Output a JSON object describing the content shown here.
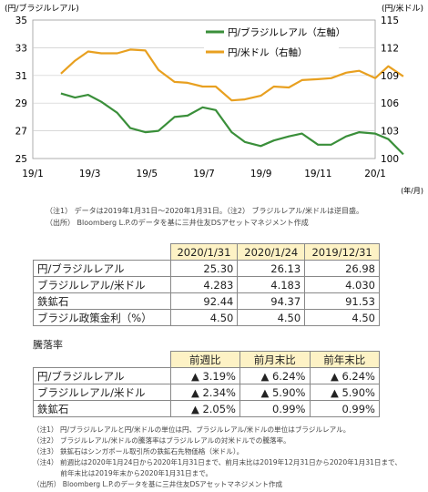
{
  "chart_data": {
    "type": "line",
    "left_axis_unit": "(円/ブラジルレアル)",
    "right_axis_unit": "(円/米ドル)",
    "x_unit": "(年/月)",
    "x_ticks": [
      "19/1",
      "19/3",
      "19/5",
      "19/7",
      "19/9",
      "19/11",
      "20/1"
    ],
    "y_left": {
      "range": [
        25,
        35
      ],
      "ticks": [
        "35",
        "33",
        "31",
        "29",
        "27",
        "25"
      ]
    },
    "y_right": {
      "range": [
        100,
        115
      ],
      "inverted": true,
      "ticks": [
        "115",
        "112",
        "109",
        "106",
        "103",
        "100"
      ]
    },
    "series": [
      {
        "name": "円/ブラジルレアル（左軸）",
        "axis": "left",
        "color": "#3a8f3a",
        "x": [
          "2019-01-31",
          "2019-02-15",
          "2019-03-01",
          "2019-03-15",
          "2019-04-01",
          "2019-04-15",
          "2019-05-01",
          "2019-05-15",
          "2019-06-01",
          "2019-06-15",
          "2019-07-01",
          "2019-07-15",
          "2019-08-01",
          "2019-08-15",
          "2019-09-01",
          "2019-09-15",
          "2019-10-01",
          "2019-10-15",
          "2019-11-01",
          "2019-11-15",
          "2019-12-01",
          "2019-12-15",
          "2020-01-01",
          "2020-01-15",
          "2020-01-31"
        ],
        "values": [
          29.7,
          29.4,
          29.6,
          29.1,
          28.3,
          27.2,
          26.9,
          27.0,
          28.0,
          28.1,
          28.7,
          28.5,
          26.9,
          26.2,
          25.9,
          26.3,
          26.6,
          26.8,
          26.0,
          26.0,
          26.6,
          26.9,
          26.8,
          26.4,
          25.3
        ]
      },
      {
        "name": "円/米ドル（右軸）",
        "axis": "right",
        "color": "#e8a020",
        "x": [
          "2019-01-31",
          "2019-02-15",
          "2019-03-01",
          "2019-03-15",
          "2019-04-01",
          "2019-04-15",
          "2019-05-01",
          "2019-05-15",
          "2019-06-01",
          "2019-06-15",
          "2019-07-01",
          "2019-07-15",
          "2019-08-01",
          "2019-08-15",
          "2019-09-01",
          "2019-09-15",
          "2019-10-01",
          "2019-10-15",
          "2019-11-01",
          "2019-11-15",
          "2019-12-01",
          "2019-12-15",
          "2020-01-01",
          "2020-01-15",
          "2020-01-31"
        ],
        "values": [
          109.2,
          110.6,
          111.6,
          111.4,
          111.4,
          111.8,
          111.7,
          109.6,
          108.3,
          108.2,
          107.8,
          107.8,
          106.3,
          106.4,
          106.8,
          107.8,
          107.7,
          108.5,
          108.6,
          108.7,
          109.3,
          109.5,
          108.7,
          110.0,
          108.9
        ]
      }
    ]
  },
  "chart_note": "（注1） データは2019年1月31日～2020年1月31日。（注2） ブラジルレアル/米ドルは逆目盛。",
  "chart_source": "（出所） Bloomberg L.P.のデータを基に三井住友DSアセットマネジメント作成",
  "table1": {
    "headers": [
      "2020/1/31",
      "2020/1/24",
      "2019/12/31"
    ],
    "rows": [
      {
        "label": "円/ブラジルレアル",
        "values": [
          "25.30",
          "26.13",
          "26.98"
        ]
      },
      {
        "label": "ブラジルレアル/米ドル",
        "values": [
          "4.283",
          "4.183",
          "4.030"
        ]
      },
      {
        "label": "鉄鉱石",
        "values": [
          "92.44",
          "94.37",
          "91.53"
        ]
      },
      {
        "label": "ブラジル政策金利（%）",
        "values": [
          "4.50",
          "4.50",
          "4.50"
        ]
      }
    ]
  },
  "table2": {
    "title": "騰落率",
    "headers": [
      "前週比",
      "前月末比",
      "前年末比"
    ],
    "rows": [
      {
        "label": "円/ブラジルレアル",
        "values": [
          "▲ 3.19%",
          "▲ 6.24%",
          "▲ 6.24%"
        ]
      },
      {
        "label": "ブラジルレアル/米ドル",
        "values": [
          "▲ 2.34%",
          "▲ 5.90%",
          "▲ 5.90%"
        ]
      },
      {
        "label": "鉄鉱石",
        "values": [
          "▲ 2.05%",
          "0.99%",
          "0.99%"
        ]
      }
    ]
  },
  "footnotes": [
    "（注1） 円/ブラジルレアルと円/米ドルの単位は円、ブラジルレアル/米ドルの単位はブラジルレアル。",
    "（注2） ブラジルレアル/米ドルの騰落率はブラジルレアルの対米ドルでの騰落率。",
    "（注3） 鉄鉱石はシンガポール取引所の鉄鉱石先物価格（米ドル）。",
    "（注4） 前週比は2020年1月24日から2020年1月31日まで、前月末比は2019年12月31日から2020年1月31日まで、",
    "　　　　前年末比は2019年末から2020年1月31日まで。",
    "（出所） Bloomberg L.P.のデータを基に三井住友DSアセットマネジメント作成"
  ]
}
